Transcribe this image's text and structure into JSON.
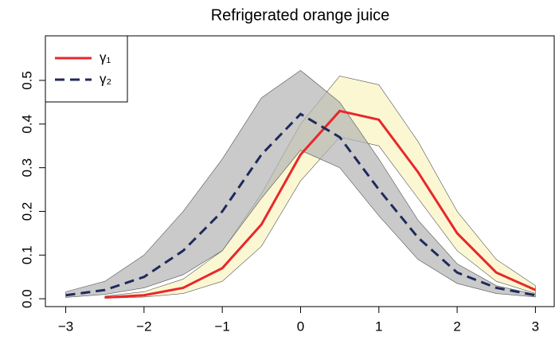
{
  "chart_data": {
    "type": "line",
    "title": "Refrigerated orange juice",
    "x": [
      -3,
      -2.5,
      -2,
      -1.5,
      -1,
      -0.5,
      0,
      0.5,
      1,
      1.5,
      2,
      2.5,
      3
    ],
    "series": [
      {
        "name": "γ₁",
        "color": "#e8282b",
        "dash": false,
        "band_color": "#f9f4c0",
        "values": [
          null,
          0.003,
          0.008,
          0.025,
          0.07,
          0.17,
          0.33,
          0.43,
          0.41,
          0.29,
          0.15,
          0.06,
          0.02
        ],
        "upper": [
          null,
          0.006,
          0.016,
          0.045,
          0.11,
          0.24,
          0.4,
          0.51,
          0.49,
          0.36,
          0.2,
          0.09,
          0.03
        ],
        "lower": [
          null,
          0.001,
          0.004,
          0.012,
          0.04,
          0.12,
          0.27,
          0.37,
          0.35,
          0.23,
          0.11,
          0.04,
          0.012
        ]
      },
      {
        "name": "γ₂",
        "color": "#1f2a5c",
        "dash": true,
        "band_color": "#b3b3b3",
        "values": [
          0.008,
          0.02,
          0.05,
          0.11,
          0.2,
          0.33,
          0.423,
          0.37,
          0.25,
          0.14,
          0.06,
          0.025,
          0.008
        ],
        "upper": [
          0.016,
          0.04,
          0.1,
          0.2,
          0.32,
          0.46,
          0.523,
          0.45,
          0.32,
          0.18,
          0.08,
          0.03,
          0.01
        ],
        "lower": [
          0.003,
          0.01,
          0.025,
          0.055,
          0.11,
          0.23,
          0.34,
          0.3,
          0.19,
          0.09,
          0.035,
          0.012,
          0.004
        ]
      }
    ],
    "xlim": [
      -3.26,
      3.24
    ],
    "ylim": [
      -0.018,
      0.602
    ],
    "xticks": [
      {
        "value": -3,
        "label": "−3"
      },
      {
        "value": -2,
        "label": "−2"
      },
      {
        "value": -1,
        "label": "−1"
      },
      0,
      1,
      2,
      3
    ],
    "yticks": [
      {
        "value": 0,
        "label": "0.0"
      },
      0.1,
      0.2,
      0.3,
      0.4,
      0.5
    ],
    "legend": "top-left"
  }
}
